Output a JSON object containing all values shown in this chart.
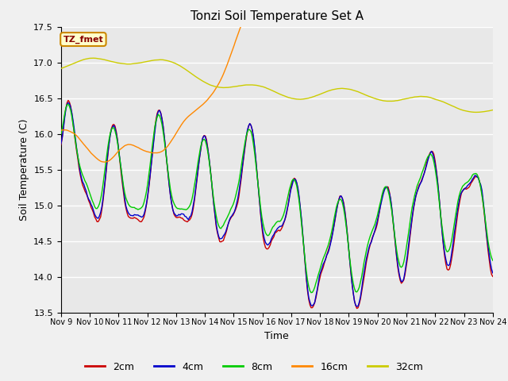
{
  "title": "Tonzi Soil Temperature Set A",
  "xlabel": "Time",
  "ylabel": "Soil Temperature (C)",
  "ylim": [
    13.5,
    17.5
  ],
  "x_tick_labels": [
    "Nov 9",
    "Nov 10",
    "Nov 11",
    "Nov 12",
    "Nov 13",
    "Nov 14",
    "Nov 15",
    "Nov 16",
    "Nov 17",
    "Nov 18",
    "Nov 19",
    "Nov 20",
    "Nov 21",
    "Nov 22",
    "Nov 23",
    "Nov 24"
  ],
  "legend_labels": [
    "2cm",
    "4cm",
    "8cm",
    "16cm",
    "32cm"
  ],
  "line_colors": [
    "#cc0000",
    "#0000cc",
    "#00cc00",
    "#ff8800",
    "#cccc00"
  ],
  "annotation_text": "TZ_fmet",
  "annotation_bg": "#ffffcc",
  "annotation_border": "#cc8800",
  "annotation_text_color": "#880000",
  "fig_bg_color": "#f0f0f0",
  "plot_bg_color": "#e8e8e8",
  "grid_color": "#ffffff"
}
